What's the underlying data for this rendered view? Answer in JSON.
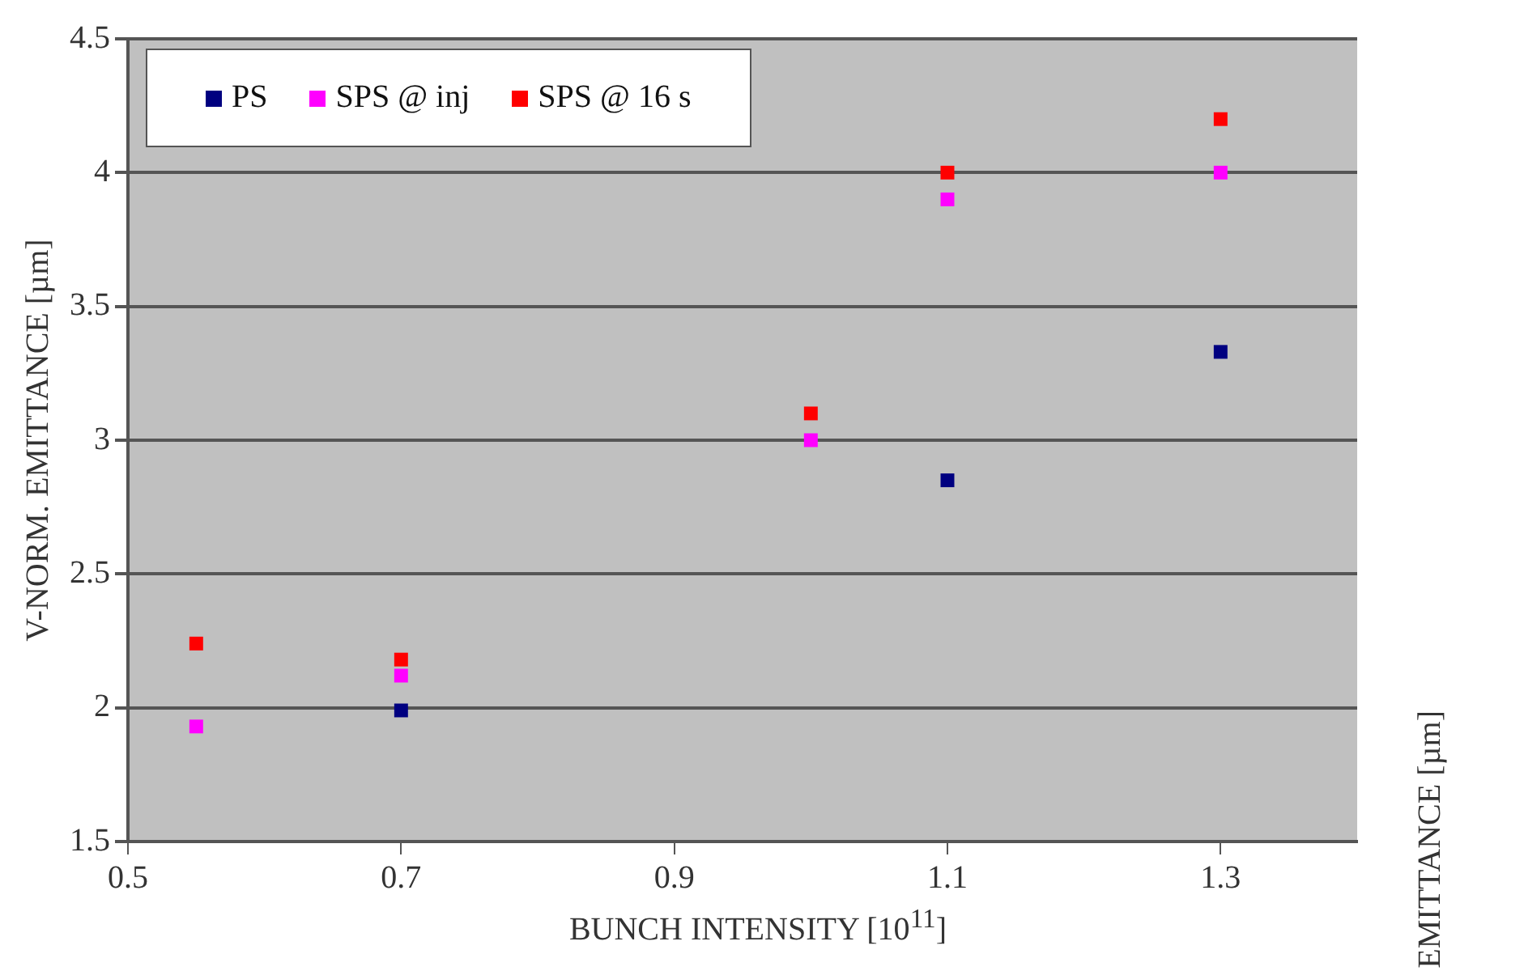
{
  "chart_data": {
    "type": "scatter",
    "xlabel": "BUNCH INTENSITY [10$^{11}$]",
    "ylabel": "V-NORM. EMITTANCE [µm]",
    "series": [
      {
        "name": "PS",
        "color": "#000080",
        "x": [
          0.7,
          1.1,
          1.3
        ],
        "values": [
          1.99,
          2.85,
          3.33
        ]
      },
      {
        "name": "SPS @ inj",
        "color": "#ff00ff",
        "x": [
          0.55,
          0.7,
          1.0,
          1.1,
          1.3
        ],
        "values": [
          1.93,
          2.12,
          3.0,
          3.9,
          4.0
        ]
      },
      {
        "name": "SPS @ 16 s",
        "color": "#ff0000",
        "x": [
          0.55,
          0.7,
          1.0,
          1.1,
          1.3
        ],
        "values": [
          2.24,
          2.18,
          3.1,
          4.0,
          4.2
        ]
      }
    ],
    "xlim": [
      0.5,
      1.4
    ],
    "xticks": [
      0.5,
      0.7,
      0.9,
      1.1,
      1.3
    ],
    "ylim": [
      1.5,
      4.5
    ],
    "yticks": [
      1.5,
      2,
      2.5,
      3,
      3.5,
      4,
      4.5
    ],
    "grid": "y",
    "legend": "top left",
    "marker": "square",
    "annotations": [
      "EMITTANCE [µm]"
    ]
  }
}
